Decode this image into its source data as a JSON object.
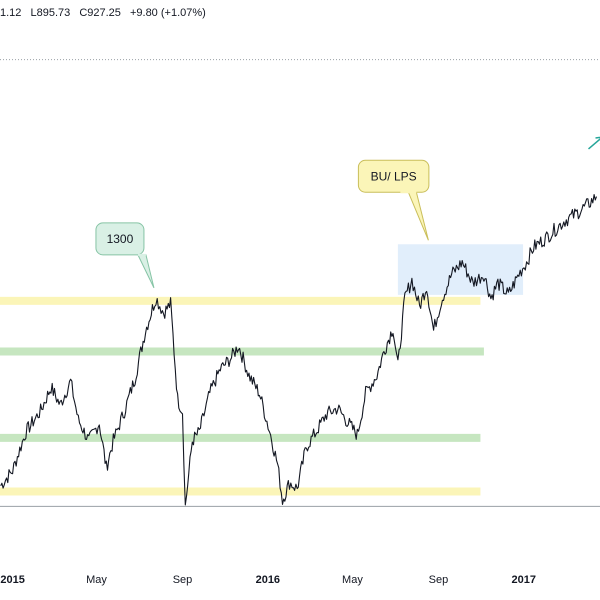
{
  "header": {
    "high": "1.12",
    "low": "L895.73",
    "close": "C927.25",
    "change": "+9.80 (+1.07%)"
  },
  "chart_data": {
    "type": "line",
    "x_ticks": [
      {
        "date": "2015-01",
        "label": "2015",
        "bold": true
      },
      {
        "date": "2015-05",
        "label": "May",
        "bold": false
      },
      {
        "date": "2015-09",
        "label": "Sep",
        "bold": false
      },
      {
        "date": "2016-01",
        "label": "2016",
        "bold": true
      },
      {
        "date": "2016-05",
        "label": "May",
        "bold": false
      },
      {
        "date": "2016-09",
        "label": "Sep",
        "bold": false
      },
      {
        "date": "2017-01",
        "label": "2017",
        "bold": true
      }
    ],
    "series": [
      {
        "color": "#131722",
        "points": [
          [
            "2014-12-15",
            985
          ],
          [
            "2015-01-01",
            1010
          ],
          [
            "2015-01-20",
            1075
          ],
          [
            "2015-02-10",
            1110
          ],
          [
            "2015-02-25",
            1150
          ],
          [
            "2015-03-10",
            1120
          ],
          [
            "2015-03-25",
            1160
          ],
          [
            "2015-04-05",
            1095
          ],
          [
            "2015-04-20",
            1060
          ],
          [
            "2015-05-05",
            1090
          ],
          [
            "2015-05-15",
            1015
          ],
          [
            "2015-05-25",
            1060
          ],
          [
            "2015-06-10",
            1110
          ],
          [
            "2015-06-25",
            1165
          ],
          [
            "2015-07-10",
            1245
          ],
          [
            "2015-07-25",
            1300
          ],
          [
            "2015-08-05",
            1275
          ],
          [
            "2015-08-15",
            1290
          ],
          [
            "2015-08-25",
            1130
          ],
          [
            "2015-09-01",
            1110
          ],
          [
            "2015-09-05",
            950
          ],
          [
            "2015-09-15",
            1060
          ],
          [
            "2015-09-25",
            1075
          ],
          [
            "2015-10-10",
            1140
          ],
          [
            "2015-10-25",
            1180
          ],
          [
            "2015-11-10",
            1200
          ],
          [
            "2015-11-20",
            1220
          ],
          [
            "2015-12-05",
            1170
          ],
          [
            "2015-12-20",
            1140
          ],
          [
            "2016-01-05",
            1070
          ],
          [
            "2016-01-15",
            1020
          ],
          [
            "2016-01-22",
            960
          ],
          [
            "2016-02-01",
            990
          ],
          [
            "2016-02-12",
            980
          ],
          [
            "2016-02-25",
            1050
          ],
          [
            "2016-03-10",
            1075
          ],
          [
            "2016-03-25",
            1105
          ],
          [
            "2016-04-10",
            1115
          ],
          [
            "2016-04-25",
            1090
          ],
          [
            "2016-05-08",
            1070
          ],
          [
            "2016-05-20",
            1140
          ],
          [
            "2016-06-05",
            1170
          ],
          [
            "2016-06-15",
            1210
          ],
          [
            "2016-06-28",
            1250
          ],
          [
            "2016-07-05",
            1185
          ],
          [
            "2016-07-15",
            1300
          ],
          [
            "2016-07-25",
            1330
          ],
          [
            "2016-08-05",
            1285
          ],
          [
            "2016-08-15",
            1320
          ],
          [
            "2016-08-25",
            1245
          ],
          [
            "2016-09-05",
            1295
          ],
          [
            "2016-09-20",
            1340
          ],
          [
            "2016-10-05",
            1360
          ],
          [
            "2016-10-20",
            1325
          ],
          [
            "2016-11-05",
            1340
          ],
          [
            "2016-11-15",
            1300
          ],
          [
            "2016-11-25",
            1325
          ],
          [
            "2016-12-10",
            1305
          ],
          [
            "2016-12-25",
            1340
          ],
          [
            "2017-01-05",
            1360
          ],
          [
            "2017-01-15",
            1385
          ],
          [
            "2017-02-01",
            1400
          ],
          [
            "2017-02-15",
            1415
          ],
          [
            "2017-03-01",
            1430
          ],
          [
            "2017-03-15",
            1440
          ],
          [
            "2017-04-01",
            1455
          ],
          [
            "2017-04-15",
            1470
          ]
        ]
      }
    ],
    "horizontal_zones": [
      {
        "x_start": "2014-12-01",
        "x_end": "2016-10-31",
        "y": 1295,
        "color": "#fbf5b8"
      },
      {
        "x_start": "2014-12-01",
        "x_end": "2016-11-05",
        "y": 1210,
        "color": "#c6e6c0"
      },
      {
        "x_start": "2014-12-01",
        "x_end": "2016-10-31",
        "y": 1065,
        "color": "#c6e6c0"
      },
      {
        "x_start": "2014-12-01",
        "x_end": "2016-10-31",
        "y": 975,
        "color": "#fbf5b8"
      }
    ],
    "boxes": [
      {
        "x_start": "2016-07-05",
        "x_end": "2016-12-31",
        "y_top": 1390,
        "y_bottom": 1305,
        "color": "#dcebfa"
      }
    ],
    "annotations": [
      {
        "text": "1300",
        "x": "2015-07-25",
        "y": 1300,
        "color": "#d9f0e5",
        "border": "#86c4a5"
      },
      {
        "text": "BU/ LPS",
        "x": "2016-07-20",
        "y": 1390,
        "color": "#fbf5b8",
        "border": "#c9be5a"
      }
    ],
    "reference_lines": [
      {
        "y": 1700,
        "style": "dotted",
        "color": "#9aa0a6"
      },
      {
        "y": 950,
        "style": "solid",
        "color": "#9aa0a6"
      }
    ],
    "arrow": {
      "x": "2017-04-15",
      "y": 1560,
      "color": "#26a69a"
    },
    "ylim": [
      860,
      1800
    ],
    "xlim": [
      "2014-12-14",
      "2017-04-20"
    ],
    "grid": false
  }
}
